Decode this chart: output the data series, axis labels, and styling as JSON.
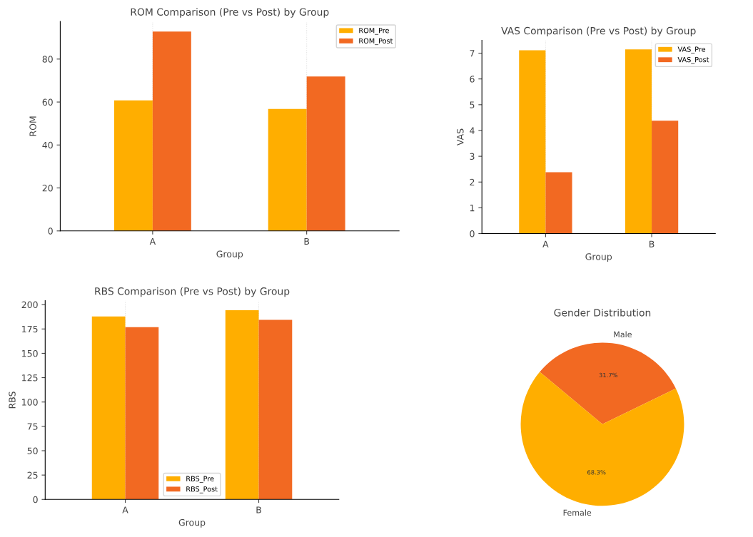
{
  "chart_data": [
    {
      "type": "bar",
      "title": "ROM Comparison (Pre vs Post) by Group",
      "xlabel": "Group",
      "ylabel": "ROM",
      "categories": [
        "A",
        "B"
      ],
      "series": [
        {
          "name": "ROM_Pre",
          "color": "#ffae00",
          "values": [
            60.8,
            56.8
          ]
        },
        {
          "name": "ROM_Post",
          "color": "#f26922",
          "values": [
            92.8,
            71.9
          ]
        }
      ],
      "ylim": [
        0,
        97.5
      ],
      "yticks": [
        0,
        20,
        40,
        60,
        80
      ],
      "grid": "x",
      "legend": "top right"
    },
    {
      "type": "bar",
      "title": "VAS Comparison (Pre vs Post) by Group",
      "xlabel": "Group",
      "ylabel": "VAS",
      "categories": [
        "A",
        "B"
      ],
      "series": [
        {
          "name": "VAS_Pre",
          "color": "#ffae00",
          "values": [
            7.11,
            7.15
          ]
        },
        {
          "name": "VAS_Post",
          "color": "#f26922",
          "values": [
            2.38,
            4.38
          ]
        }
      ],
      "ylim": [
        0,
        7.5
      ],
      "yticks": [
        0,
        1,
        2,
        3,
        4,
        5,
        6,
        7
      ],
      "grid": "x",
      "legend": "top right"
    },
    {
      "type": "bar",
      "title": "RBS Comparison (Pre vs Post) by Group",
      "xlabel": "Group",
      "ylabel": "RBS",
      "categories": [
        "A",
        "B"
      ],
      "series": [
        {
          "name": "RBS_Pre",
          "color": "#ffae00",
          "values": [
            187.9,
            194.2
          ]
        },
        {
          "name": "RBS_Post",
          "color": "#f26922",
          "values": [
            176.9,
            184.4
          ]
        }
      ],
      "ylim": [
        0,
        204
      ],
      "yticks": [
        0,
        25,
        50,
        75,
        100,
        125,
        150,
        175,
        200
      ],
      "grid": "x",
      "legend": "bottom"
    },
    {
      "type": "pie",
      "title": "Gender Distribution",
      "categories": [
        "Male",
        "Female"
      ],
      "values": [
        31.7,
        68.3
      ],
      "colors": [
        "#f26922",
        "#ffae00"
      ],
      "value_labels": [
        "31.7%",
        "68.3%"
      ]
    }
  ]
}
